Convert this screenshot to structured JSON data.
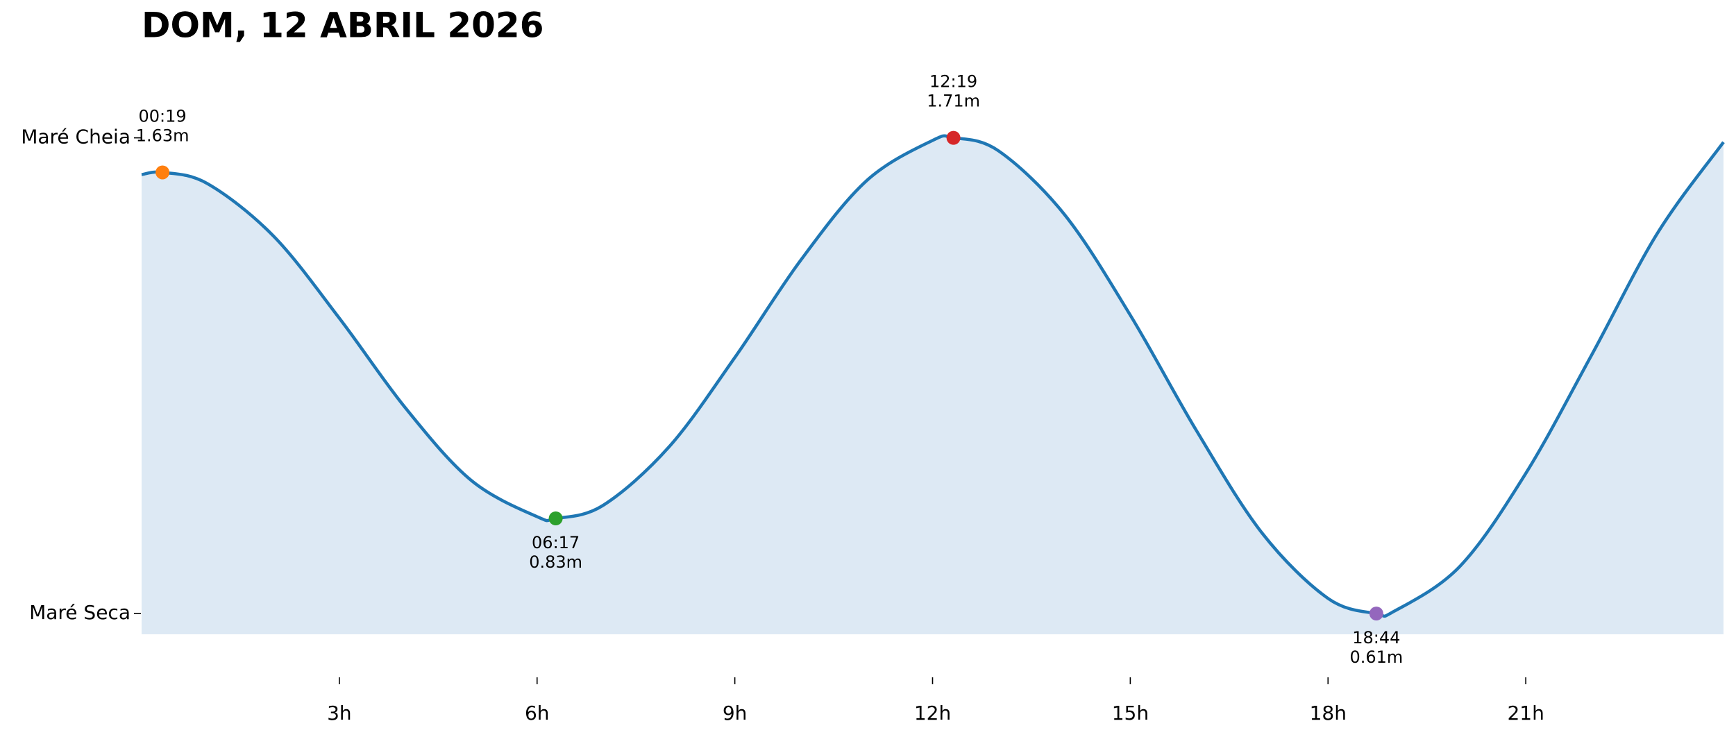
{
  "chart_data": {
    "type": "line",
    "title": "DOM, 12 ABRIL 2026",
    "xlim": [
      0,
      24
    ],
    "xticks": [
      {
        "value": 3,
        "label": "3h"
      },
      {
        "value": 6,
        "label": "6h"
      },
      {
        "value": 9,
        "label": "9h"
      },
      {
        "value": 12,
        "label": "12h"
      },
      {
        "value": 15,
        "label": "15h"
      },
      {
        "value": 18,
        "label": "18h"
      },
      {
        "value": 21,
        "label": "21h"
      }
    ],
    "ylim": [
      0.562,
      1.78
    ],
    "yticks": [
      {
        "value": 1.71,
        "label": "Maré Cheia"
      },
      {
        "value": 0.61,
        "label": "Maré Seca"
      }
    ],
    "fill_color": "#dde9f4",
    "series": [
      {
        "color": "#1f77b4",
        "x": [
          0,
          0.317,
          1,
          2,
          3,
          4,
          5,
          6,
          6.283,
          7,
          8,
          9,
          10,
          11,
          12,
          12.317,
          13,
          14,
          15,
          16,
          17,
          18,
          18.733,
          19,
          20,
          21,
          22,
          23,
          24
        ],
        "values": [
          1.625,
          1.63,
          1.604,
          1.483,
          1.293,
          1.086,
          0.918,
          0.834,
          0.83,
          0.86,
          0.995,
          1.202,
          1.427,
          1.611,
          1.704,
          1.71,
          1.68,
          1.533,
          1.3,
          1.034,
          0.796,
          0.645,
          0.61,
          0.615,
          0.719,
          0.934,
          1.208,
          1.49,
          1.7
        ]
      },
      {
        "type": "scatter",
        "x": [
          0.317,
          6.283,
          12.317,
          18.733
        ],
        "values": [
          1.63,
          0.83,
          1.71,
          0.61
        ],
        "times": [
          "00:19",
          "06:17",
          "12:19",
          "18:44"
        ],
        "value_labels": [
          "1.63m",
          "0.83m",
          "1.71m",
          "0.61m"
        ],
        "colors": [
          "#ff7f0e",
          "#2ca02c",
          "#d62728",
          "#9467bd"
        ]
      }
    ]
  }
}
